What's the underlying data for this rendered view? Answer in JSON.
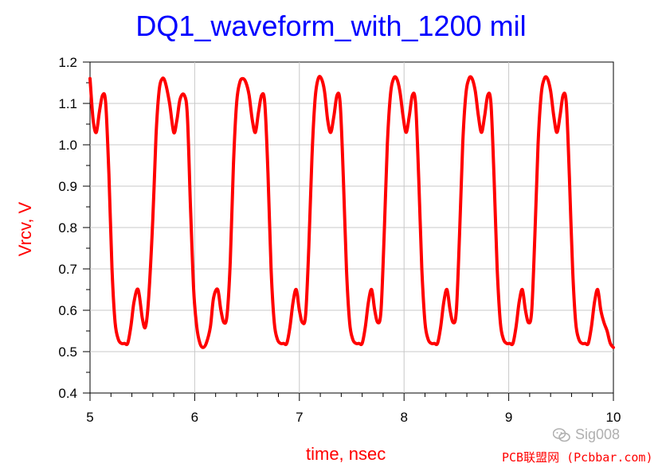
{
  "chart_data": {
    "type": "line",
    "title": "DQ1_waveform_with_1200 mil",
    "xlabel": "time, nsec",
    "ylabel": "Vrcv, V",
    "xlim": [
      5,
      10
    ],
    "ylim": [
      0.4,
      1.2
    ],
    "x_ticks": [
      "5",
      "6",
      "7",
      "8",
      "9",
      "10"
    ],
    "y_ticks": [
      "0.4",
      "0.5",
      "0.6",
      "0.7",
      "0.8",
      "0.9",
      "1.0",
      "1.1",
      "1.2"
    ],
    "grid": true,
    "colors": {
      "title": "#0000ff",
      "labels": "#ff0000",
      "series": "#ff0000",
      "grid": "#c8c8c8"
    },
    "series": [
      {
        "name": "Vrcv",
        "x": [
          5.0,
          5.03,
          5.06,
          5.09,
          5.12,
          5.15,
          5.18,
          5.21,
          5.24,
          5.27,
          5.3,
          5.33,
          5.36,
          5.39,
          5.42,
          5.46,
          5.5,
          5.53,
          5.56,
          5.6,
          5.63,
          5.66,
          5.69,
          5.72,
          5.76,
          5.8,
          5.83,
          5.86,
          5.9,
          5.93,
          5.96,
          5.99,
          6.02,
          6.05,
          6.08,
          6.11,
          6.15,
          6.18,
          6.22,
          6.25,
          6.28,
          6.31,
          6.34,
          6.37,
          6.4,
          6.43,
          6.46,
          6.49,
          6.52,
          6.55,
          6.58,
          6.61,
          6.64,
          6.67,
          6.7,
          6.73,
          6.76,
          6.79,
          6.82,
          6.85,
          6.88,
          6.91,
          6.94,
          6.97,
          7.0,
          7.03,
          7.06,
          7.09,
          7.12,
          7.15,
          7.18,
          7.21,
          7.24,
          7.27,
          7.3,
          7.33,
          7.36,
          7.39,
          7.42,
          7.45,
          7.48,
          7.51,
          7.54,
          7.57,
          7.6,
          7.63,
          7.66,
          7.69,
          7.72,
          7.75,
          7.78,
          7.81,
          7.84,
          7.87,
          7.9,
          7.93,
          7.96,
          7.99,
          8.02,
          8.05,
          8.08,
          8.11,
          8.14,
          8.17,
          8.2,
          8.23,
          8.26,
          8.29,
          8.32,
          8.35,
          8.38,
          8.41,
          8.44,
          8.47,
          8.5,
          8.53,
          8.56,
          8.59,
          8.62,
          8.65,
          8.68,
          8.71,
          8.74,
          8.77,
          8.8,
          8.83,
          8.86,
          8.89,
          8.92,
          8.95,
          8.98,
          9.01,
          9.04,
          9.07,
          9.1,
          9.13,
          9.16,
          9.19,
          9.22,
          9.25,
          9.28,
          9.31,
          9.34,
          9.37,
          9.4,
          9.43,
          9.46,
          9.49,
          9.52,
          9.55,
          9.58,
          9.61,
          9.64,
          9.67,
          9.7,
          9.73,
          9.76,
          9.79,
          9.82,
          9.85,
          9.88,
          9.91,
          9.94,
          9.97,
          10.0
        ],
        "y": [
          1.16,
          1.06,
          1.03,
          1.08,
          1.12,
          1.1,
          0.93,
          0.7,
          0.57,
          0.53,
          0.52,
          0.52,
          0.52,
          0.56,
          0.62,
          0.65,
          0.58,
          0.56,
          0.63,
          0.82,
          1.02,
          1.13,
          1.16,
          1.15,
          1.1,
          1.03,
          1.06,
          1.11,
          1.12,
          1.07,
          0.85,
          0.65,
          0.56,
          0.52,
          0.51,
          0.52,
          0.56,
          0.63,
          0.65,
          0.6,
          0.57,
          0.59,
          0.72,
          0.95,
          1.1,
          1.15,
          1.16,
          1.15,
          1.12,
          1.06,
          1.03,
          1.08,
          1.12,
          1.1,
          0.93,
          0.7,
          0.57,
          0.53,
          0.52,
          0.52,
          0.52,
          0.56,
          0.62,
          0.65,
          0.6,
          0.57,
          0.59,
          0.75,
          0.97,
          1.11,
          1.16,
          1.16,
          1.13,
          1.06,
          1.03,
          1.07,
          1.12,
          1.1,
          0.92,
          0.7,
          0.57,
          0.53,
          0.52,
          0.52,
          0.52,
          0.56,
          0.62,
          0.65,
          0.6,
          0.57,
          0.6,
          0.78,
          1.0,
          1.12,
          1.16,
          1.16,
          1.13,
          1.07,
          1.03,
          1.07,
          1.12,
          1.1,
          0.92,
          0.7,
          0.57,
          0.53,
          0.52,
          0.52,
          0.52,
          0.56,
          0.62,
          0.65,
          0.6,
          0.57,
          0.6,
          0.78,
          1.0,
          1.12,
          1.16,
          1.16,
          1.13,
          1.07,
          1.03,
          1.07,
          1.12,
          1.1,
          0.92,
          0.7,
          0.57,
          0.53,
          0.52,
          0.52,
          0.52,
          0.56,
          0.62,
          0.65,
          0.6,
          0.57,
          0.6,
          0.78,
          1.0,
          1.12,
          1.16,
          1.16,
          1.13,
          1.07,
          1.03,
          1.07,
          1.12,
          1.1,
          0.92,
          0.7,
          0.57,
          0.53,
          0.52,
          0.52,
          0.52,
          0.56,
          0.62,
          0.65,
          0.6,
          0.57,
          0.55,
          0.52,
          0.51
        ]
      }
    ]
  },
  "watermark": {
    "logo_text": "Sig008",
    "site": "PCB联盟网 (Pcbbar.com)"
  }
}
